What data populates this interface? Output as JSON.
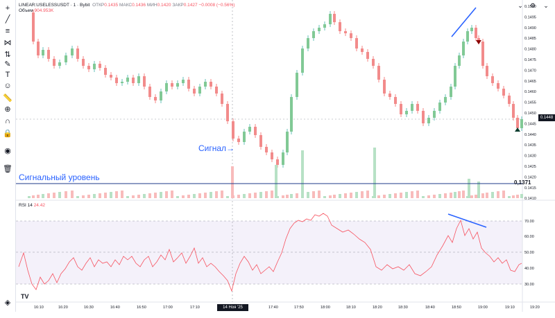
{
  "legend": {
    "symbol": "LINEAR:USELESSUSDT · 1 · Bybit",
    "open_label": "ОТКР",
    "open": "0.1435",
    "high_label": "МАКС",
    "high": "0.1436",
    "low_label": "МИН",
    "low": "0.1420",
    "close_label": "ЗАКР",
    "close": "0.1427",
    "change": "−0.0008 (−0.56%)"
  },
  "volume": {
    "label": "Объем",
    "value": "904.953K"
  },
  "rsi": {
    "label": "RSI 14",
    "value": "24.42"
  },
  "annotations": {
    "signal": "Сигнал→",
    "level": "Сигнальный уровень",
    "level_price": "0,1371"
  },
  "current_price": "0.1448",
  "time_tag": "14 Ноя '25   17:25",
  "logo": "TV",
  "price_axis": [
    "0.1500",
    "0.1495",
    "0.1490",
    "0.1485",
    "0.1480",
    "0.1475",
    "0.1470",
    "0.1465",
    "0.1460",
    "0.1455",
    "0.1450",
    "0.1445",
    "0.1440",
    "0.1435",
    "0.1430",
    "0.1425",
    "0.1420",
    "0.1415",
    "0.1410"
  ],
  "rsi_axis": [
    "70.00",
    "60.00",
    "50.00",
    "40.00",
    "30.00"
  ],
  "time_axis": [
    "16:10",
    "16:20",
    "16:30",
    "16:40",
    "16:50",
    "17:00",
    "17:10",
    "17:40",
    "17:50",
    "18:00",
    "18:10",
    "18:20",
    "18:30",
    "18:40",
    "18:50",
    "19:00",
    "19:10",
    "19:20"
  ],
  "toolbar": [
    "crosshair-icon",
    "trend-line-icon",
    "fib-icon",
    "pattern-icon",
    "projection-icon",
    "brush-icon",
    "text-icon",
    "emoji-icon",
    "ruler-icon",
    "zoom-icon",
    "magnet-icon",
    "lock-icon",
    "eye-icon",
    "trash-icon"
  ],
  "colors": {
    "up": "#26a69a",
    "down": "#ef5350",
    "accent": "#2962ff"
  }
}
